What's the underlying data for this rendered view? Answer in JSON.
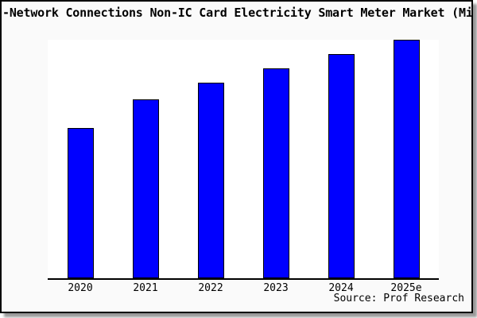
{
  "chart_data": {
    "type": "bar",
    "title": "-Network Connections Non-IC Card Electricity Smart Meter Market (Mi",
    "title_truncated": true,
    "categories": [
      "2020",
      "2021",
      "2022",
      "2023",
      "2024",
      "2025e"
    ],
    "values": [
      63,
      75,
      82,
      88,
      94,
      100
    ],
    "values_note": "relative units estimated from bar heights; no y-axis tick labels visible; 2025e bar = 100",
    "xlabel": "",
    "ylabel": "",
    "ylim": [
      0,
      100
    ],
    "grid": false,
    "legend": false,
    "source": "Source: Prof Research",
    "bar_color": "#0000ff",
    "bar_edge_color": "#000000"
  },
  "colors": {
    "figure_background": "#fafafa",
    "plot_background": "#ffffff",
    "card_border": "#000000",
    "card_shadow": "#999999",
    "text": "#000000"
  }
}
